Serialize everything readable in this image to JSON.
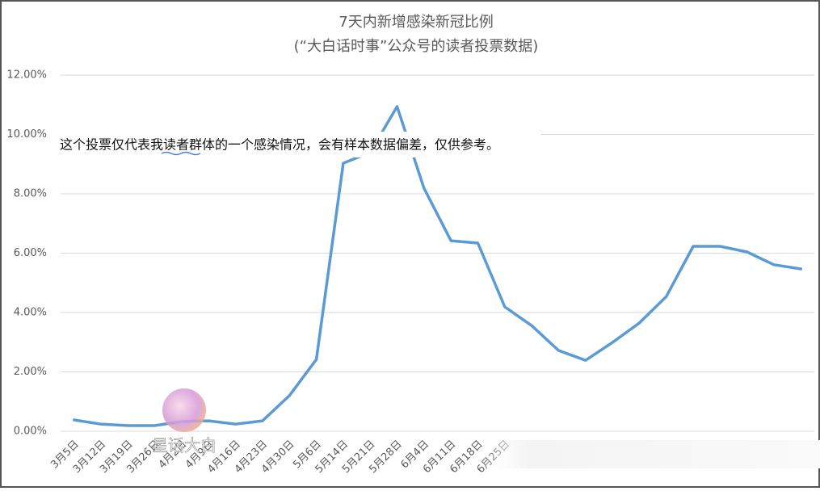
{
  "chart_data": {
    "type": "line",
    "title": "7天内新增感染新冠比例",
    "subtitle": "(“大白话时事”公众号的读者投票数据)",
    "annotation": "这个投票仅代表我读者群体的一个感染情况，会有样本数据偏差，仅供参考。",
    "watermark": "星话大白",
    "categories": [
      "3月5日",
      "3月12日",
      "3月19日",
      "3月26日",
      "4月2日",
      "4月9日",
      "4月16日",
      "4月23日",
      "4月30日",
      "5月6日",
      "5月14日",
      "5月21日",
      "5月28日",
      "6月4日",
      "6月11日",
      "6月18日",
      "6月25日",
      null,
      null,
      null,
      null,
      null,
      null,
      null,
      null,
      null,
      null,
      null
    ],
    "series": [
      {
        "name": "7天内新增感染新冠比例",
        "color": "#5b9bd5",
        "values": [
          0.38,
          0.24,
          0.19,
          0.19,
          0.33,
          0.35,
          0.24,
          0.35,
          1.2,
          2.42,
          9.03,
          9.4,
          10.94,
          8.19,
          6.42,
          6.34,
          4.19,
          3.56,
          2.72,
          2.39,
          2.99,
          3.65,
          4.54,
          6.23,
          6.23,
          6.04,
          5.61,
          5.47
        ]
      }
    ],
    "ylim": [
      0,
      12
    ],
    "yticks": [
      {
        "value": 0,
        "label": "0.00%"
      },
      {
        "value": 2,
        "label": "2.00%"
      },
      {
        "value": 4,
        "label": "4.00%"
      },
      {
        "value": 6,
        "label": "6.00%"
      },
      {
        "value": 8,
        "label": "8.00%"
      },
      {
        "value": 10,
        "label": "10.00%"
      },
      {
        "value": 12,
        "label": "12.00%"
      }
    ],
    "grid": true
  }
}
